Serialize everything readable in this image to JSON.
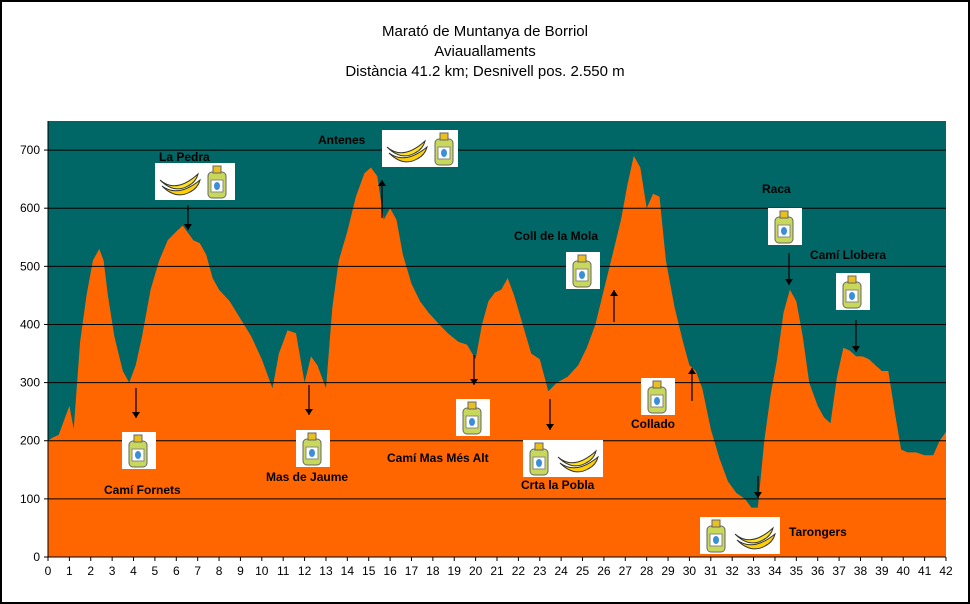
{
  "chart_data": {
    "type": "area",
    "title": "Marató de Muntanya de Borriol",
    "subtitle": "Aviauallaments",
    "subtitle2": "Distància 41.2 km; Desnivell pos. 2.550 m",
    "xlabel": "",
    "ylabel": "",
    "xlim": [
      0,
      42
    ],
    "ylim": [
      0,
      750
    ],
    "x_ticks": [
      0,
      1,
      2,
      3,
      4,
      5,
      6,
      7,
      8,
      9,
      10,
      11,
      12,
      13,
      14,
      15,
      16,
      17,
      18,
      19,
      20,
      21,
      22,
      23,
      24,
      25,
      26,
      27,
      28,
      29,
      30,
      31,
      32,
      33,
      34,
      35,
      36,
      37,
      38,
      39,
      40,
      41,
      42
    ],
    "y_ticks": [
      0,
      100,
      200,
      300,
      400,
      500,
      600,
      700
    ],
    "grid": true,
    "colors": {
      "plot_bg": "#006666",
      "area": "#FF6600",
      "grid": "#000000"
    },
    "series": [
      {
        "x": [
          0,
          0.2,
          0.5,
          0.8,
          1.0,
          1.2,
          1.5,
          1.8,
          2.1,
          2.4,
          2.6,
          2.8,
          3.1,
          3.5,
          3.8,
          4.1,
          4.4,
          4.8,
          5.2,
          5.6,
          6.0,
          6.3,
          6.6,
          6.8,
          7.1,
          7.4,
          7.7,
          8.0,
          8.5,
          9.0,
          9.5,
          10.0,
          10.5,
          10.8,
          11.2,
          11.6,
          12.0,
          12.3,
          12.6,
          13.0,
          13.3,
          13.6,
          14.0,
          14.4,
          14.8,
          15.1,
          15.4,
          15.7,
          16.0,
          16.3,
          16.6,
          17.0,
          17.4,
          17.8,
          18.3,
          18.7,
          19.2,
          19.6,
          20.0,
          20.3,
          20.6,
          20.9,
          21.2,
          21.5,
          21.8,
          22.2,
          22.6,
          23.0,
          23.4,
          23.8,
          24.3,
          24.8,
          25.2,
          25.6,
          26.0,
          26.4,
          26.8,
          27.1,
          27.4,
          27.7,
          28.0,
          28.3,
          28.6,
          28.9,
          29.3,
          29.7,
          30.0,
          30.3,
          30.6,
          31.0,
          31.4,
          31.8,
          32.2,
          32.6,
          32.9,
          33.2,
          33.5,
          33.8,
          34.1,
          34.4,
          34.7,
          35.0,
          35.3,
          35.6,
          36.0,
          36.3,
          36.6,
          36.9,
          37.2,
          37.5,
          37.8,
          38.1,
          38.4,
          38.7,
          39.0,
          39.3,
          39.6,
          39.9,
          40.2,
          40.6,
          41.0,
          41.4,
          41.7,
          42.0
        ],
        "y": [
          200,
          205,
          210,
          240,
          260,
          220,
          370,
          450,
          510,
          530,
          510,
          450,
          380,
          320,
          300,
          330,
          380,
          460,
          510,
          545,
          560,
          570,
          555,
          545,
          540,
          520,
          480,
          460,
          440,
          410,
          380,
          340,
          290,
          350,
          390,
          385,
          300,
          345,
          330,
          290,
          430,
          510,
          560,
          620,
          660,
          670,
          655,
          580,
          600,
          580,
          520,
          470,
          440,
          420,
          400,
          385,
          370,
          365,
          340,
          400,
          440,
          455,
          460,
          480,
          450,
          400,
          350,
          340,
          285,
          300,
          310,
          330,
          360,
          400,
          460,
          520,
          580,
          640,
          690,
          670,
          600,
          625,
          620,
          510,
          430,
          370,
          330,
          320,
          290,
          220,
          170,
          130,
          110,
          100,
          85,
          85,
          200,
          280,
          340,
          420,
          460,
          440,
          380,
          300,
          260,
          240,
          230,
          310,
          360,
          355,
          345,
          345,
          340,
          330,
          320,
          320,
          250,
          185,
          180,
          180,
          175,
          175,
          200,
          215
        ]
      }
    ],
    "annotations": [
      {
        "label": "La Pedra",
        "x": 6.5,
        "y": 565
      },
      {
        "label": "Antenes",
        "x": 15.6,
        "y": 670
      },
      {
        "label": "Coll de la Mola",
        "x": 26.5,
        "y": 460
      },
      {
        "label": "Raca",
        "x": 34.7,
        "y": 455
      },
      {
        "label": "Camí Llobera",
        "x": 37.8,
        "y": 355
      },
      {
        "label": "Camí Fornets",
        "x": 4.1,
        "y": 300
      },
      {
        "label": "Mas de Jaume",
        "x": 12.2,
        "y": 300
      },
      {
        "label": "Camí Mas Més Alt",
        "x": 20.0,
        "y": 340
      },
      {
        "label": "Crta la Pobla",
        "x": 23.6,
        "y": 285
      },
      {
        "label": "Collado",
        "x": 30.1,
        "y": 320
      },
      {
        "label": "Tarongers",
        "x": 33.2,
        "y": 85
      }
    ]
  }
}
